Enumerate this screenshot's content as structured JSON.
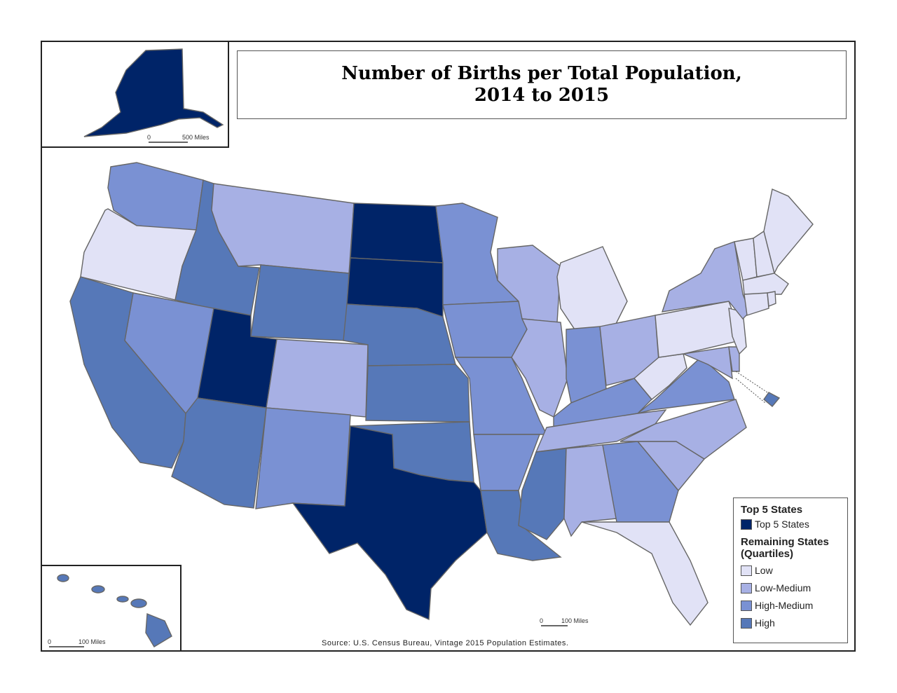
{
  "title": {
    "line1": "Number of Births per Total Population,",
    "line2": "2014 to 2015"
  },
  "source": "Source:  U.S. Census Bureau, Vintage 2015 Population Estimates.",
  "colors": {
    "top5": "#002468",
    "low": "#e1e2f6",
    "low_medium": "#a7b0e4",
    "high_medium": "#7a91d3",
    "high": "#5678b8"
  },
  "legend": {
    "top_heading": "Top 5 States",
    "top_label": "Top 5 States",
    "remaining_heading_1": "Remaining States",
    "remaining_heading_2": "(Quartiles)",
    "items": [
      {
        "label": "Low",
        "key": "low"
      },
      {
        "label": "Low-Medium",
        "key": "low_medium"
      },
      {
        "label": "High-Medium",
        "key": "high_medium"
      },
      {
        "label": "High",
        "key": "high"
      }
    ]
  },
  "scales": {
    "alaska": {
      "zero": "0",
      "label": "500 Miles"
    },
    "hawaii": {
      "zero": "0",
      "label": "100 Miles"
    },
    "main": {
      "zero": "0",
      "label": "100 Miles"
    }
  },
  "state_classes": {
    "WA": "high_medium",
    "OR": "low",
    "CA": "high",
    "NV": "high_medium",
    "ID": "high",
    "MT": "low_medium",
    "WY": "high",
    "UT": "top5",
    "AZ": "high",
    "CO": "low_medium",
    "NM": "high_medium",
    "ND": "top5",
    "SD": "top5",
    "NE": "high",
    "KS": "high",
    "OK": "high",
    "TX": "top5",
    "MN": "high_medium",
    "IA": "high_medium",
    "MO": "high_medium",
    "AR": "high_medium",
    "LA": "high",
    "WI": "low_medium",
    "IL": "low_medium",
    "MI": "low",
    "IN": "high_medium",
    "OH": "low_medium",
    "KY": "high_medium",
    "TN": "low_medium",
    "MS": "high",
    "AL": "low_medium",
    "GA": "high_medium",
    "FL": "low",
    "SC": "low_medium",
    "NC": "low_medium",
    "VA": "high_medium",
    "WV": "low",
    "PA": "low",
    "NY": "low_medium",
    "MD": "low_medium",
    "DE": "low_medium",
    "NJ": "low",
    "CT": "low",
    "RI": "low",
    "MA": "low",
    "VT": "low",
    "NH": "low",
    "ME": "low",
    "DC": "high",
    "AK": "top5",
    "HI": "high"
  }
}
